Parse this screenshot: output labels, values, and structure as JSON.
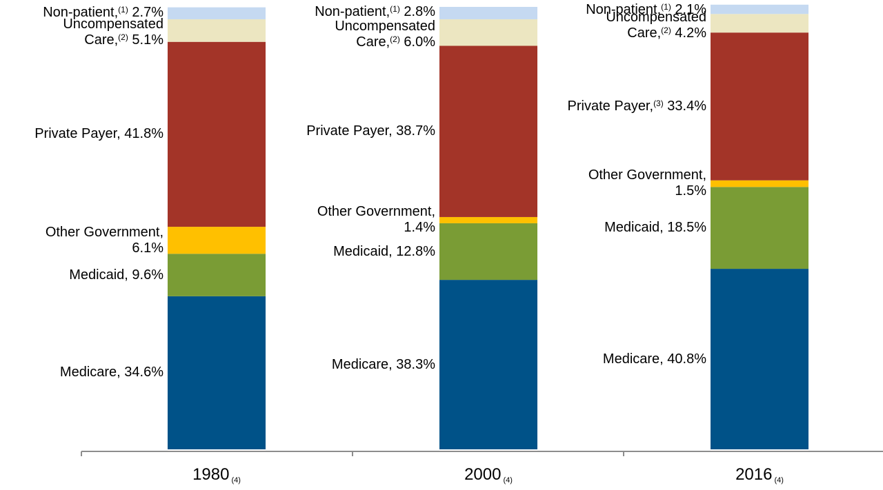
{
  "chart_data": {
    "type": "bar",
    "stacked": true,
    "categories": [
      {
        "year": "1980",
        "note": "(4)"
      },
      {
        "year": "2000",
        "note": "(4)"
      },
      {
        "year": "2016",
        "note": "(4)"
      }
    ],
    "series": [
      {
        "key": "medicare",
        "color": "#005288",
        "values": [
          34.6,
          38.3,
          40.8
        ]
      },
      {
        "key": "medicaid",
        "color": "#7a9c35",
        "values": [
          9.6,
          12.8,
          18.5
        ]
      },
      {
        "key": "other_gov",
        "color": "#ffc000",
        "values": [
          6.1,
          1.4,
          1.5
        ]
      },
      {
        "key": "private_payer",
        "color": "#a33428",
        "values": [
          41.8,
          38.7,
          33.4
        ]
      },
      {
        "key": "uncompensated",
        "color": "#ece6c1",
        "values": [
          5.1,
          6.0,
          4.2
        ]
      },
      {
        "key": "non_patient",
        "color": "#c5d9f1",
        "values": [
          2.7,
          2.8,
          2.1
        ]
      }
    ],
    "ylim": [
      0,
      100
    ],
    "segment_labels": [
      [
        [
          {
            "text": "Medicare, 34.6%"
          }
        ],
        [
          {
            "text": "Medicaid, 9.6%"
          }
        ],
        [
          {
            "text": "Other Government,"
          },
          {
            "text": "6.1%"
          }
        ],
        [
          {
            "text": "Private Payer, 41.8%"
          }
        ],
        [
          {
            "text": "Uncompensated"
          },
          {
            "text": "Care,",
            "sup": "(2)",
            "after": " 5.1%"
          }
        ],
        [
          {
            "text": "Non-patient,",
            "sup": "(1)",
            "after": " 2.7%"
          }
        ]
      ],
      [
        [
          {
            "text": "Medicare, 38.3%"
          }
        ],
        [
          {
            "text": "Medicaid, 12.8%"
          }
        ],
        [
          {
            "text": "Other Government,"
          },
          {
            "text": "1.4%"
          }
        ],
        [
          {
            "text": "Private Payer, 38.7%"
          }
        ],
        [
          {
            "text": "Uncompensated"
          },
          {
            "text": "Care,",
            "sup": "(2)",
            "after": " 6.0%"
          }
        ],
        [
          {
            "text": "Non-patient,",
            "sup": "(1)",
            "after": " 2.8%"
          }
        ]
      ],
      [
        [
          {
            "text": "Medicare, 40.8%"
          }
        ],
        [
          {
            "text": "Medicaid, 18.5%"
          }
        ],
        [
          {
            "text": "Other Government,"
          },
          {
            "text": "1.5%"
          }
        ],
        [
          {
            "text": "Private Payer,",
            "sup": "(3)",
            "after": " 33.4%"
          }
        ],
        [
          {
            "text": "Uncompensated"
          },
          {
            "text": "Care,",
            "sup": "(2)",
            "after": " 4.2%"
          }
        ],
        [
          {
            "text": "Non-patient,",
            "sup": "(1)",
            "after": " 2.1%"
          }
        ]
      ]
    ]
  }
}
